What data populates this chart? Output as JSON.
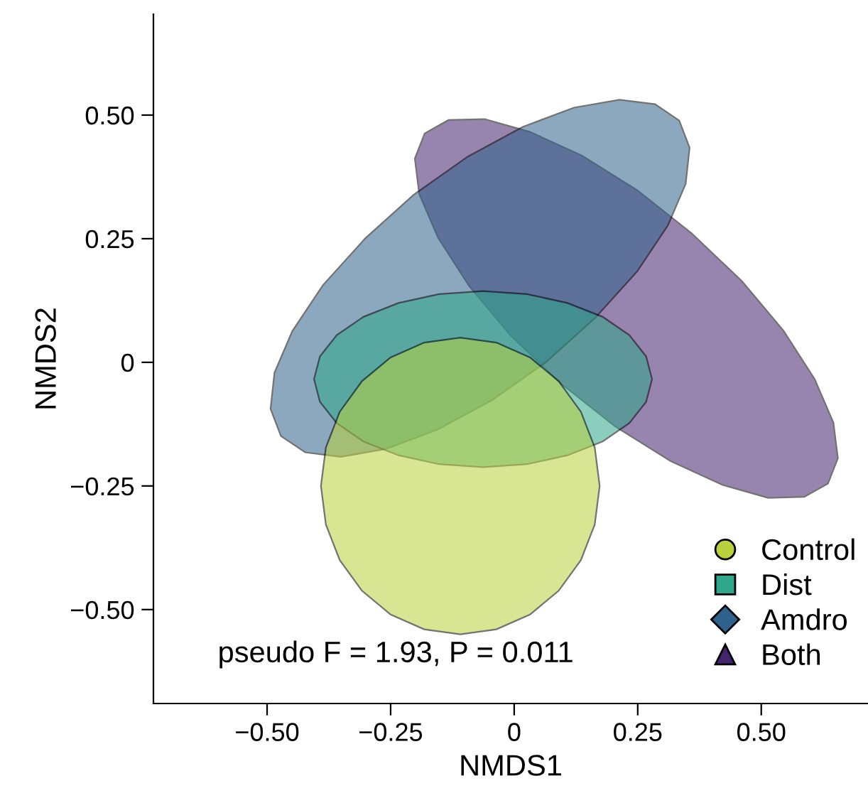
{
  "chart_data": {
    "type": "area",
    "xlabel": "NMDS1",
    "ylabel": "NMDS2",
    "xlim": [
      -0.73,
      0.716
    ],
    "ylim": [
      -0.69,
      0.704
    ],
    "xticks": [
      {
        "value": -0.5,
        "label": "−0.50"
      },
      {
        "value": -0.25,
        "label": "−0.25"
      },
      0,
      0.25,
      {
        "value": 0.5,
        "label": "0.50"
      }
    ],
    "yticks": [
      {
        "value": -0.5,
        "label": "−0.50"
      },
      {
        "value": -0.25,
        "label": "−0.25"
      },
      0,
      0.25,
      {
        "value": 0.5,
        "label": "0.50"
      }
    ],
    "legend": "bottom right",
    "grid": false,
    "annotations": [
      "pseudo F = 1.93, P = 0.011"
    ],
    "series": [
      {
        "name": "Control",
        "color": "#b9d13c",
        "x": [
          0.173,
          0.163,
          0.135,
          0.09,
          0.032,
          -0.036,
          -0.109,
          -0.182,
          -0.25,
          -0.308,
          -0.353,
          -0.381,
          -0.391,
          -0.381,
          -0.353,
          -0.308,
          -0.25,
          -0.182,
          -0.109,
          -0.036,
          0.032,
          0.09,
          0.135,
          0.163
        ],
        "values": [
          -0.25,
          -0.172,
          -0.1,
          -0.038,
          0.01,
          0.04,
          0.05,
          0.04,
          0.01,
          -0.038,
          -0.1,
          -0.172,
          -0.25,
          -0.328,
          -0.4,
          -0.462,
          -0.51,
          -0.54,
          -0.55,
          -0.54,
          -0.51,
          -0.462,
          -0.4,
          -0.328
        ]
      },
      {
        "name": "Dist",
        "color": "#2fa78a",
        "x": [
          0.279,
          0.267,
          0.233,
          0.179,
          0.108,
          0.026,
          -0.063,
          -0.152,
          -0.234,
          -0.305,
          -0.359,
          -0.393,
          -0.405,
          -0.393,
          -0.359,
          -0.305,
          -0.234,
          -0.152,
          -0.063,
          0.026,
          0.108,
          0.179,
          0.233,
          0.267
        ],
        "values": [
          -0.034,
          0.012,
          0.055,
          0.092,
          0.12,
          0.138,
          0.144,
          0.138,
          0.12,
          0.092,
          0.055,
          0.012,
          -0.034,
          -0.08,
          -0.123,
          -0.16,
          -0.188,
          -0.206,
          -0.212,
          -0.206,
          -0.188,
          -0.16,
          -0.123,
          -0.08
        ]
      },
      {
        "name": "Amdro",
        "color": "#2e628c",
        "x": [
          0.334,
          0.285,
          0.213,
          0.121,
          0.017,
          -0.094,
          -0.203,
          -0.302,
          -0.387,
          -0.449,
          -0.485,
          -0.493,
          -0.472,
          -0.423,
          -0.351,
          -0.259,
          -0.155,
          -0.044,
          0.065,
          0.164,
          0.249,
          0.311,
          0.347,
          0.355
        ],
        "values": [
          0.489,
          0.522,
          0.531,
          0.515,
          0.476,
          0.416,
          0.339,
          0.25,
          0.156,
          0.063,
          -0.021,
          -0.094,
          -0.149,
          -0.182,
          -0.191,
          -0.175,
          -0.136,
          -0.076,
          0.001,
          0.09,
          0.184,
          0.277,
          0.361,
          0.434
        ]
      },
      {
        "name": "Both",
        "color": "#44236f",
        "x": [
          0.635,
          0.655,
          0.646,
          0.608,
          0.545,
          0.461,
          0.359,
          0.249,
          0.137,
          0.032,
          -0.06,
          -0.133,
          -0.181,
          -0.201,
          -0.192,
          -0.154,
          -0.091,
          -0.007,
          0.095,
          0.205,
          0.317,
          0.422,
          0.514,
          0.587
        ],
        "values": [
          -0.245,
          -0.194,
          -0.122,
          -0.034,
          0.064,
          0.164,
          0.261,
          0.348,
          0.418,
          0.466,
          0.492,
          0.49,
          0.463,
          0.412,
          0.34,
          0.252,
          0.154,
          0.054,
          -0.043,
          -0.13,
          -0.2,
          -0.248,
          -0.274,
          -0.272
        ]
      }
    ]
  }
}
